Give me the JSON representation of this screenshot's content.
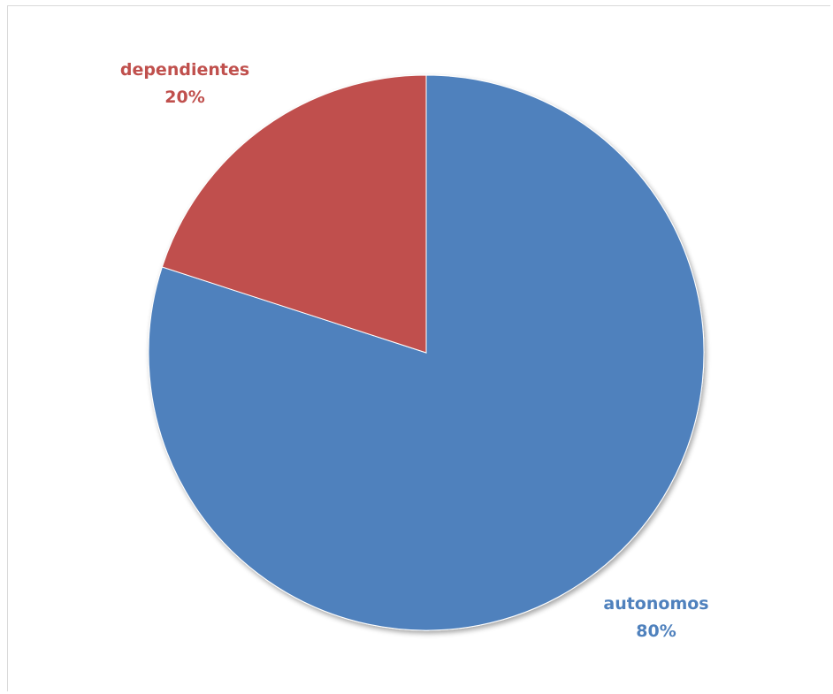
{
  "chart_data": {
    "type": "pie",
    "title": "",
    "start_angle_deg": 0,
    "direction": "clockwise",
    "slices": [
      {
        "label": "autonomos",
        "value": 80,
        "display": "80%",
        "color": "#4f81bd"
      },
      {
        "label": "dependientes",
        "value": 20,
        "display": "20%",
        "color": "#c0504d"
      }
    ],
    "legend": "none",
    "data_labels": "outside-category-and-percent"
  }
}
